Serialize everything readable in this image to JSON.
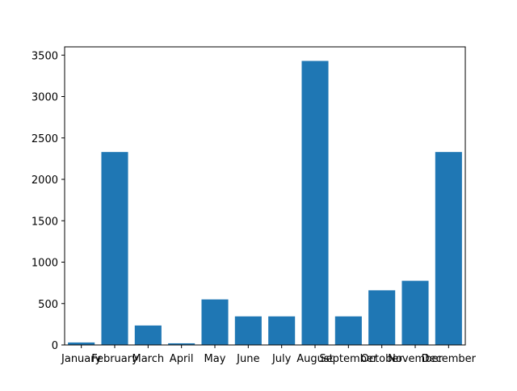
{
  "chart_data": {
    "type": "bar",
    "title": "",
    "xlabel": "",
    "ylabel": "",
    "categories": [
      "January",
      "February",
      "March",
      "April",
      "May",
      "June",
      "July",
      "August",
      "September",
      "October",
      "November",
      "December"
    ],
    "values": [
      30,
      2330,
      235,
      20,
      550,
      345,
      345,
      3430,
      345,
      660,
      775,
      2330
    ],
    "ylim": [
      0,
      3600
    ],
    "yticks": [
      0,
      500,
      1000,
      1500,
      2000,
      2500,
      3000,
      3500
    ],
    "ytick_labels": [
      "0",
      "500",
      "1000",
      "1500",
      "2000",
      "2500",
      "3000",
      "3500"
    ],
    "bar_color": "#1f77b4",
    "grid": false,
    "legend": "none"
  }
}
